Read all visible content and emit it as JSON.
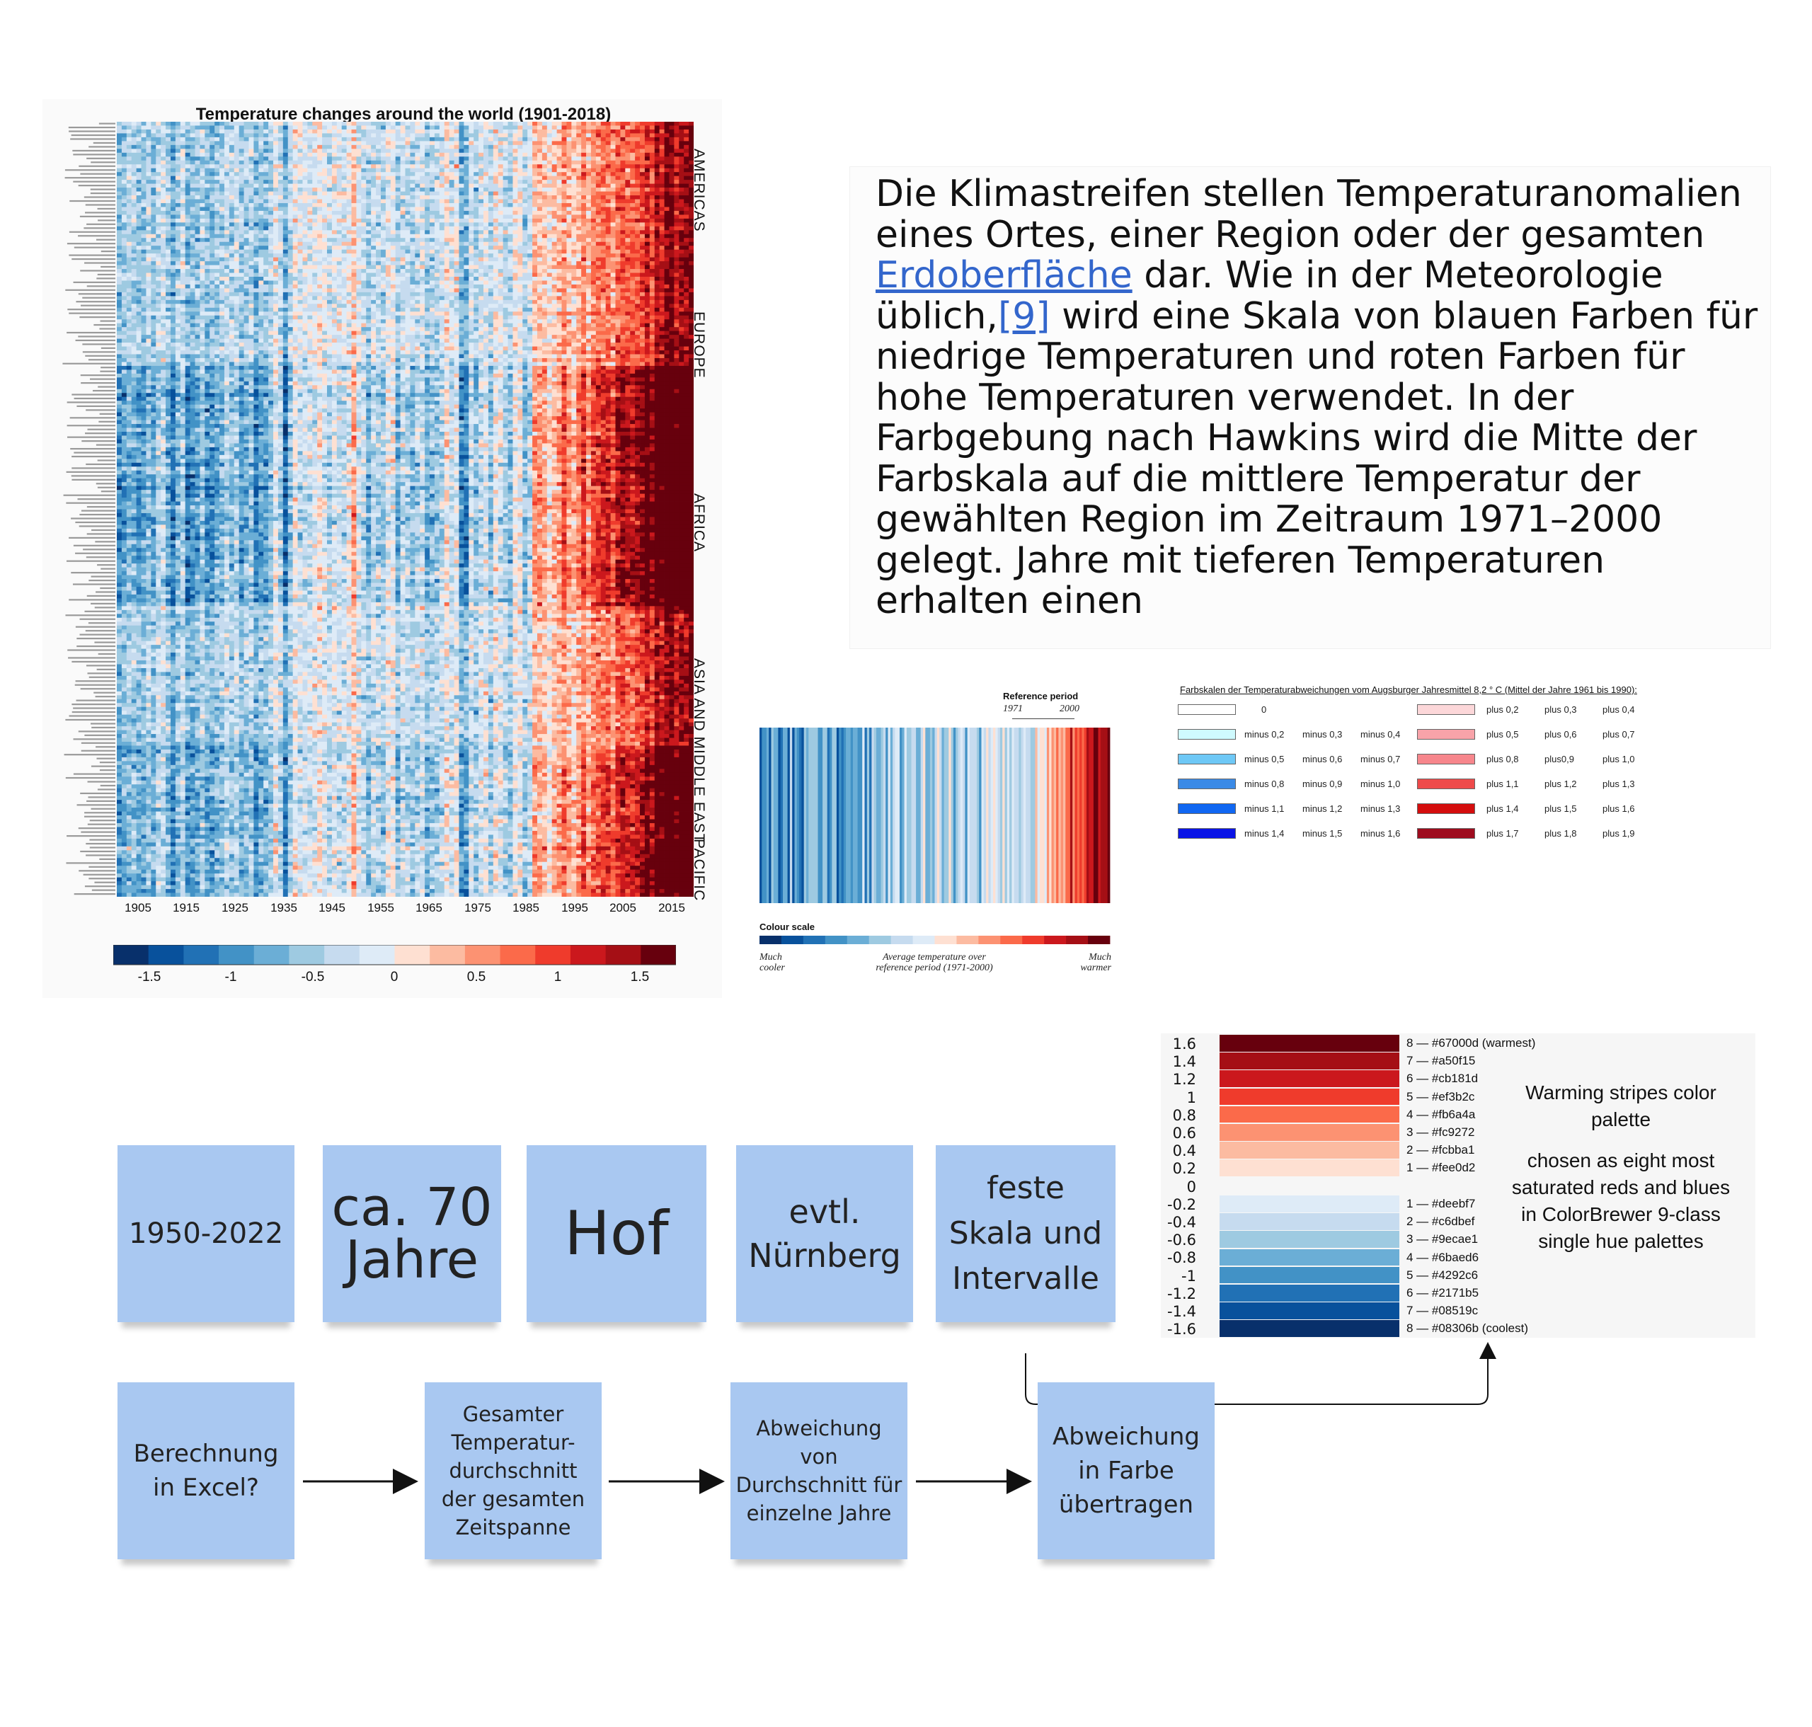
{
  "heatmap": {
    "title": "Temperature changes around the world (1901-2018)",
    "regions": [
      "AMERICAS",
      "EUROPE",
      "AFRICA",
      "ASIA AND MIDDLE EAST",
      "PACIFIC"
    ],
    "x_ticks": [
      "1905",
      "1915",
      "1925",
      "1935",
      "1945",
      "1955",
      "1965",
      "1975",
      "1985",
      "1995",
      "2005",
      "2015"
    ],
    "colorbar_ticks": [
      "-1.5",
      "-1",
      "-0.5",
      "0",
      "0.5",
      "1",
      "1.5"
    ],
    "colorbar_colors": [
      "#08306b",
      "#08519c",
      "#2171b5",
      "#4292c6",
      "#6baed6",
      "#9ecae1",
      "#c6dbef",
      "#deebf7",
      "#fee0d2",
      "#fcbba1",
      "#fc9272",
      "#fb6a4a",
      "#ef3b2c",
      "#cb181d",
      "#a50f15",
      "#67000d"
    ]
  },
  "paragraph": {
    "part1": "Die Klimastreifen stellen Temperaturanomalien eines Ortes, einer Region oder der gesamten ",
    "link1": "Erdoberfläche",
    "part2": " dar. Wie in der Meteorologie üblich,",
    "link2": "[9]",
    "part3": " wird eine Skala von blauen Farben für niedrige Temperaturen und roten  Farben für hohe Temperaturen verwendet. In der Farbgebung nach Hawkins  wird die Mitte der Farbskala auf die mittlere Temperatur der gewählten Region im Zeitraum 1971–2000 gelegt. Jahre mit tieferen Temperaturen  erhalten einen"
  },
  "stripes": {
    "reference_label": "Reference period",
    "ref_start": "1971",
    "ref_end": "2000",
    "colour_scale_label": "Colour scale",
    "left_caption": "Much cooler",
    "mid_caption": "Average temperature over reference period (1971-2000)",
    "right_caption": "Much warmer"
  },
  "farbskalen": {
    "title": "Farbskalen der Temperaturabweichungen vom Augsburger Jahresmittel 8,2 ° C (Mittel der Jahre 1961 bis 1990):",
    "rows": [
      {
        "cold_color": "#ffffff",
        "cold": [
          "0",
          "",
          ""
        ],
        "warm_color": "#fcd7d9",
        "warm": [
          "plus 0,2",
          "plus 0,3",
          "plus 0,4"
        ]
      },
      {
        "cold_color": "#cffafe",
        "cold": [
          "minus 0,2",
          "minus 0,3",
          "minus 0,4"
        ],
        "warm_color": "#f8a3a9",
        "warm": [
          "plus 0,5",
          "plus 0,6",
          "plus 0,7"
        ]
      },
      {
        "cold_color": "#6ec8f6",
        "cold": [
          "minus 0,5",
          "minus 0,6",
          "minus 0,7"
        ],
        "warm_color": "#f7868c",
        "warm": [
          "plus 0,8",
          "plus0,9",
          "plus 1,0"
        ]
      },
      {
        "cold_color": "#3a8ae6",
        "cold": [
          "minus 0,8",
          "minus 0,9",
          "minus 1,0"
        ],
        "warm_color": "#ee4a4a",
        "warm": [
          "plus 1,1",
          "plus 1,2",
          "plus 1,3"
        ]
      },
      {
        "cold_color": "#1067f2",
        "cold": [
          "minus 1,1",
          "minus 1,2",
          "minus 1,3"
        ],
        "warm_color": "#d40d0d",
        "warm": [
          "plus 1,4",
          "plus 1,5",
          "plus 1,6"
        ]
      },
      {
        "cold_color": "#0a13e6",
        "cold": [
          "minus 1,4",
          "minus 1,5",
          "minus 1,6"
        ],
        "warm_color": "#9e0c1e",
        "warm": [
          "plus 1,7",
          "plus 1,8",
          "plus 1,9"
        ]
      }
    ]
  },
  "palette": {
    "values": [
      "1.6",
      "1.4",
      "1.2",
      "1",
      "0.8",
      "0.6",
      "0.4",
      "0.2",
      "0",
      "-0.2",
      "-0.4",
      "-0.6",
      "-0.8",
      "-1",
      "-1.2",
      "-1.4",
      "-1.6"
    ],
    "warm": [
      {
        "label": "8 — #67000d (warmest)",
        "color": "#67000d"
      },
      {
        "label": "7 — #a50f15",
        "color": "#a50f15"
      },
      {
        "label": "6 — #cb181d",
        "color": "#cb181d"
      },
      {
        "label": "5 — #ef3b2c",
        "color": "#ef3b2c"
      },
      {
        "label": "4 — #fb6a4a",
        "color": "#fb6a4a"
      },
      {
        "label": "3 — #fc9272",
        "color": "#fc9272"
      },
      {
        "label": "2 — #fcbba1",
        "color": "#fcbba1"
      },
      {
        "label": "1 — #fee0d2",
        "color": "#fee0d2"
      }
    ],
    "cold": [
      {
        "label": "1 — #deebf7",
        "color": "#deebf7"
      },
      {
        "label": "2 — #c6dbef",
        "color": "#c6dbef"
      },
      {
        "label": "3 — #9ecae1",
        "color": "#9ecae1"
      },
      {
        "label": "4 — #6baed6",
        "color": "#6baed6"
      },
      {
        "label": "5 — #4292c6",
        "color": "#4292c6"
      },
      {
        "label": "6 — #2171b5",
        "color": "#2171b5"
      },
      {
        "label": "7 — #08519c",
        "color": "#08519c"
      },
      {
        "label": "8 — #08306b (coolest)",
        "color": "#08306b"
      }
    ],
    "note_title": "Warming stripes color palette",
    "note_body": "chosen as eight most saturated reds and blues in ColorBrewer 9-class single hue palettes"
  },
  "notes_top": [
    "1950-2022",
    "ca. 70 Jahre",
    "Hof",
    "evtl. Nürnberg",
    "feste Skala und Intervalle"
  ],
  "notes_flow": [
    "Berechnung in Excel?",
    "Gesamter Temperatur-durchschnitt der gesamten Zeitspanne",
    "Abweichung von Durchschnitt für einzelne Jahre",
    "Abweichung in Farbe übertragen"
  ]
}
